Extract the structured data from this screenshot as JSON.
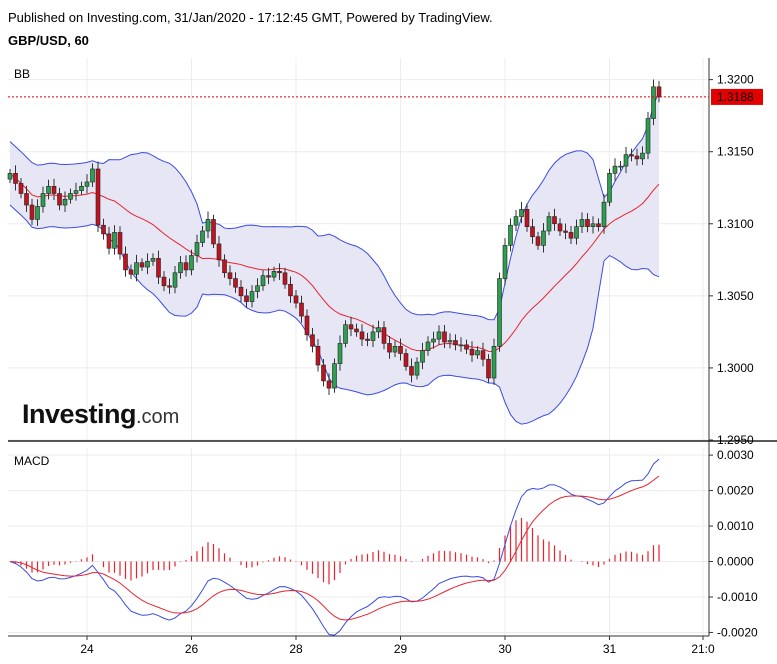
{
  "header": {
    "published": "Published on Investing.com, 31/Jan/2020 - 17:12:45 GMT, Powered by TradingView.",
    "symbol": "GBP/USD, 60"
  },
  "logo": {
    "main": "Investing",
    "suffix": ".com"
  },
  "chart_data": [
    {
      "type": "candlestick",
      "panel_label": "BB",
      "ylim": [
        1.295,
        1.3215
      ],
      "yticks": [
        1.32,
        1.315,
        1.31,
        1.305,
        1.3,
        1.295
      ],
      "ytick_labels": [
        "1.3200",
        "1.3150",
        "1.3100",
        "1.3050",
        "1.3000",
        "1.2950"
      ],
      "last_price": 1.3188,
      "last_price_label": "1.3188",
      "grid": true,
      "x_labels": [
        {
          "label": "24",
          "bar": 14
        },
        {
          "label": "26",
          "bar": 33
        },
        {
          "label": "28",
          "bar": 52
        },
        {
          "label": "29",
          "bar": 71
        },
        {
          "label": "30",
          "bar": 90
        },
        {
          "label": "31",
          "bar": 109
        },
        {
          "label": "21:0",
          "bar": 126
        }
      ],
      "close": [
        1.3135,
        1.3128,
        1.3121,
        1.3113,
        1.3103,
        1.3112,
        1.3121,
        1.3126,
        1.3121,
        1.3113,
        1.3117,
        1.3121,
        1.3123,
        1.3126,
        1.3129,
        1.3138,
        1.3099,
        1.3093,
        1.3083,
        1.3094,
        1.3079,
        1.3068,
        1.3065,
        1.3073,
        1.307,
        1.3074,
        1.3076,
        1.3063,
        1.3057,
        1.3056,
        1.3066,
        1.3073,
        1.3068,
        1.3078,
        1.3087,
        1.3095,
        1.3103,
        1.3086,
        1.3075,
        1.3066,
        1.3062,
        1.3056,
        1.305,
        1.3046,
        1.3053,
        1.3057,
        1.3064,
        1.3063,
        1.3067,
        1.3066,
        1.3058,
        1.305,
        1.3045,
        1.3036,
        1.3023,
        1.3015,
        1.3002,
        1.2991,
        1.2986,
        1.3003,
        1.3017,
        1.303,
        1.3027,
        1.3025,
        1.302,
        1.3019,
        1.3025,
        1.3028,
        1.3017,
        1.3011,
        1.3015,
        1.301,
        1.3001,
        1.2995,
        1.3004,
        1.3012,
        1.3018,
        1.302,
        1.3025,
        1.3018,
        1.3019,
        1.3016,
        1.3016,
        1.3013,
        1.3009,
        1.3012,
        1.3006,
        1.2993,
        1.3015,
        1.3062,
        1.3085,
        1.3099,
        1.3105,
        1.311,
        1.3098,
        1.3091,
        1.3085,
        1.3095,
        1.3105,
        1.31,
        1.3095,
        1.3094,
        1.309,
        1.3098,
        1.3103,
        1.3098,
        1.31,
        1.3098,
        1.3115,
        1.3135,
        1.314,
        1.314,
        1.3148,
        1.3147,
        1.3145,
        1.3149,
        1.3173,
        1.3195,
        1.3188
      ],
      "up_color": "#2e9e4f",
      "down_color": "#c1121f",
      "bollinger": {
        "period": 20,
        "stddev": 2,
        "band_color": "#3b4ce0",
        "middle_color": "#e8232e",
        "fill_color": "#e6e6f5"
      }
    },
    {
      "type": "macd",
      "panel_label": "MACD",
      "ylim": [
        -0.0021,
        0.0032
      ],
      "yticks": [
        0.003,
        0.002,
        0.001,
        0.0,
        -0.001,
        -0.002
      ],
      "ytick_labels": [
        "0.0030",
        "0.0020",
        "0.0010",
        "0.0000",
        "-0.0010",
        "-0.0020"
      ],
      "macd_color": "#3b4ce0",
      "signal_color": "#e8232e",
      "histogram_color": "#e8232e",
      "fast": 12,
      "slow": 26,
      "signal": 9
    }
  ]
}
